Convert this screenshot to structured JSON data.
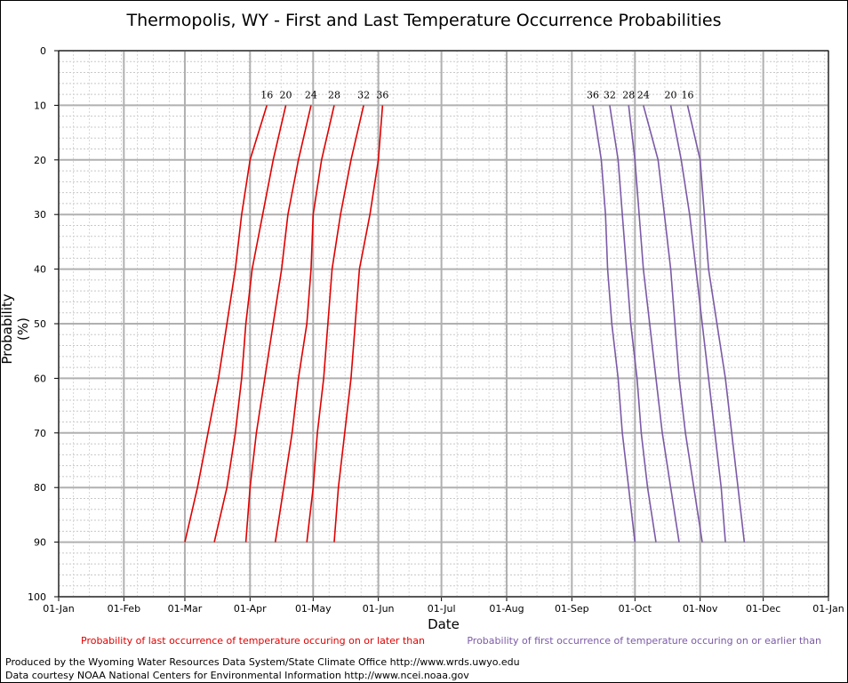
{
  "chart_data": {
    "type": "line",
    "title": "Thermopolis, WY - First and Last Temperature Occurrence Probabilities",
    "xlabel": "Date",
    "ylabel": "Probability (%)",
    "x_ticks": [
      "01-Jan",
      "01-Feb",
      "01-Mar",
      "01-Apr",
      "01-May",
      "01-Jun",
      "01-Jul",
      "01-Aug",
      "01-Sep",
      "01-Oct",
      "01-Nov",
      "01-Dec",
      "01-Jan"
    ],
    "y_ticks": [
      "0",
      "10",
      "20",
      "30",
      "40",
      "50",
      "60",
      "70",
      "80",
      "90",
      "100"
    ],
    "ylim": [
      0,
      100
    ],
    "y_inverted": true,
    "grid": true,
    "colors": {
      "last": "#e00000",
      "first": "#7b5aa6"
    },
    "probabilities": [
      10,
      20,
      30,
      40,
      50,
      60,
      70,
      80,
      90
    ],
    "last_occurrence_series": [
      {
        "name": "16",
        "dates": [
          "2020-04-09",
          "2020-04-01",
          "2020-03-28",
          "2020-03-25",
          "2020-03-21",
          "2020-03-17",
          "2020-03-12",
          "2020-03-07",
          "2020-03-01"
        ]
      },
      {
        "name": "20",
        "dates": [
          "2020-04-18",
          "2020-04-12",
          "2020-04-07",
          "2020-04-02",
          "2020-03-30",
          "2020-03-28",
          "2020-03-25",
          "2020-03-21",
          "2020-03-15"
        ]
      },
      {
        "name": "24",
        "dates": [
          "2020-04-30",
          "2020-04-24",
          "2020-04-19",
          "2020-04-16",
          "2020-04-12",
          "2020-04-08",
          "2020-04-04",
          "2020-04-01",
          "2020-03-30"
        ]
      },
      {
        "name": "28",
        "dates": [
          "2020-05-11",
          "2020-05-05",
          "2020-05-01",
          "2020-04-30",
          "2020-04-28",
          "2020-04-24",
          "2020-04-21",
          "2020-04-17",
          "2020-04-13"
        ]
      },
      {
        "name": "32",
        "dates": [
          "2020-05-25",
          "2020-05-19",
          "2020-05-14",
          "2020-05-10",
          "2020-05-08",
          "2020-05-06",
          "2020-05-03",
          "2020-05-01",
          "2020-04-28"
        ]
      },
      {
        "name": "36",
        "dates": [
          "2020-06-03",
          "2020-06-01",
          "2020-05-28",
          "2020-05-23",
          "2020-05-21",
          "2020-05-19",
          "2020-05-16",
          "2020-05-13",
          "2020-05-11"
        ]
      }
    ],
    "first_occurrence_series": [
      {
        "name": "36",
        "dates": [
          "2020-09-11",
          "2020-09-15",
          "2020-09-17",
          "2020-09-18",
          "2020-09-20",
          "2020-09-23",
          "2020-09-25",
          "2020-09-28",
          "2020-10-01"
        ]
      },
      {
        "name": "32",
        "dates": [
          "2020-09-19",
          "2020-09-23",
          "2020-09-25",
          "2020-09-27",
          "2020-09-29",
          "2020-10-02",
          "2020-10-04",
          "2020-10-07",
          "2020-10-11"
        ]
      },
      {
        "name": "28",
        "dates": [
          "2020-09-28",
          "2020-10-01",
          "2020-10-03",
          "2020-10-05",
          "2020-10-08",
          "2020-10-11",
          "2020-10-14",
          "2020-10-18",
          "2020-10-22"
        ]
      },
      {
        "name": "24",
        "dates": [
          "2020-10-05",
          "2020-10-12",
          "2020-10-15",
          "2020-10-18",
          "2020-10-20",
          "2020-10-22",
          "2020-10-25",
          "2020-10-29",
          "2020-11-02"
        ]
      },
      {
        "name": "20",
        "dates": [
          "2020-10-18",
          "2020-10-23",
          "2020-10-27",
          "2020-10-30",
          "2020-11-02",
          "2020-11-05",
          "2020-11-08",
          "2020-11-11",
          "2020-11-13"
        ]
      },
      {
        "name": "16",
        "dates": [
          "2020-10-26",
          "2020-11-01",
          "2020-11-03",
          "2020-11-05",
          "2020-11-09",
          "2020-11-13",
          "2020-11-16",
          "2020-11-19",
          "2020-11-22"
        ]
      }
    ],
    "legend": {
      "last": "Probability of last occurrence of temperature occuring on or later than",
      "first": "Probability of first occurrence of temperature occuring on or earlier than"
    }
  },
  "credits": {
    "line1": "Produced by the Wyoming Water Resources Data System/State Climate Office http://www.wrds.uwyo.edu",
    "line2": "Data courtesy NOAA National Centers for Environmental Information http://www.ncei.noaa.gov"
  }
}
